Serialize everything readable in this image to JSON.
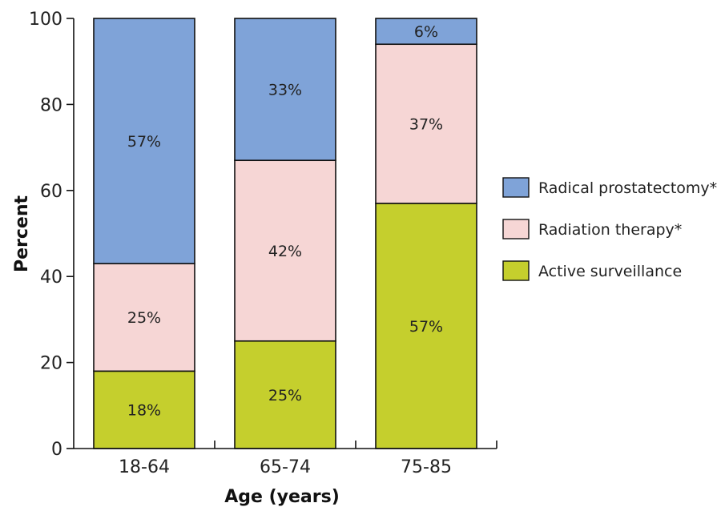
{
  "chart_data": {
    "type": "bar",
    "stacked": true,
    "categories": [
      "18-64",
      "65-74",
      "75-85"
    ],
    "series": [
      {
        "name": "Active surveillance",
        "color": "#c5cf2d",
        "values": [
          18,
          25,
          57
        ],
        "labels": [
          "18%",
          "25%",
          "57%"
        ]
      },
      {
        "name": "Radiation therapy*",
        "color": "#f6d6d5",
        "values": [
          25,
          42,
          37
        ],
        "labels": [
          "25%",
          "42%",
          "37%"
        ]
      },
      {
        "name": "Radical prostatectomy*",
        "color": "#7fa3d8",
        "values": [
          57,
          33,
          6
        ],
        "labels": [
          "57%",
          "33%",
          "6%"
        ]
      }
    ],
    "legend_order": [
      "Radical prostatectomy*",
      "Radiation therapy*",
      "Active surveillance"
    ],
    "legend_position": "right",
    "xlabel": "Age (years)",
    "ylabel": "Percent",
    "ylim": [
      0,
      100
    ],
    "yticks": [
      0,
      20,
      40,
      60,
      80,
      100
    ],
    "grid": false
  }
}
